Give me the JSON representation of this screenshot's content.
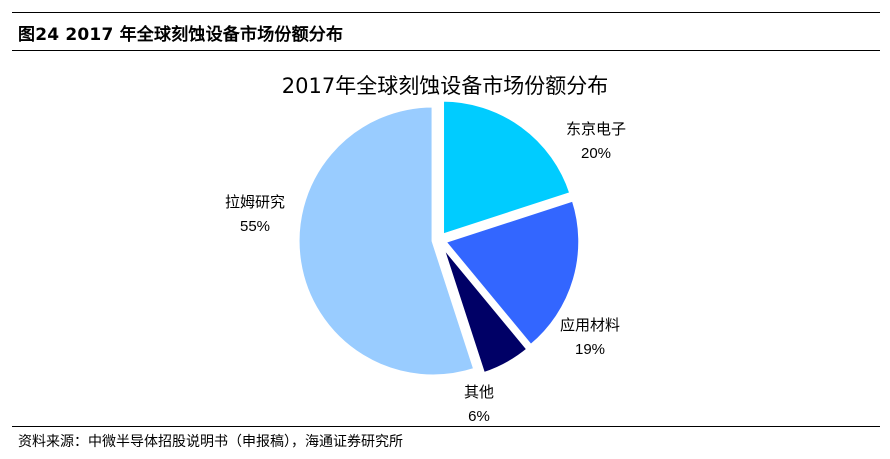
{
  "figure": {
    "caption": "图24 2017 年全球刻蚀设备市场份额分布",
    "source": "资料来源：中微半导体招股说明书（申报稿），海通证券研究所"
  },
  "chart_data": {
    "type": "pie",
    "title": "2017年全球刻蚀设备市场份额分布",
    "unit": "%",
    "slices": [
      {
        "name": "东京电子",
        "value": 20,
        "label": "20%",
        "color": "#00CCFF"
      },
      {
        "name": "应用材料",
        "value": 19,
        "label": "19%",
        "color": "#3366FF"
      },
      {
        "name": "其他",
        "value": 6,
        "label": "6%",
        "color": "#000066"
      },
      {
        "name": "拉姆研究",
        "value": 55,
        "label": "55%",
        "color": "#99CCFF"
      }
    ],
    "start_angle_deg": 0,
    "direction": "clockwise",
    "exploded": true
  }
}
